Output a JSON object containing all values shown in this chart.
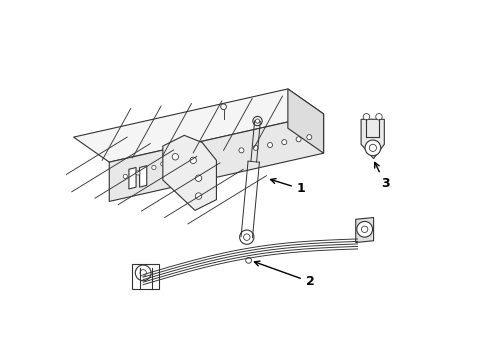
{
  "background_color": "#ffffff",
  "line_color": "#333333",
  "line_width": 0.8,
  "annotation_color": "#000000",
  "fig_width": 4.9,
  "fig_height": 3.6,
  "dpi": 100
}
